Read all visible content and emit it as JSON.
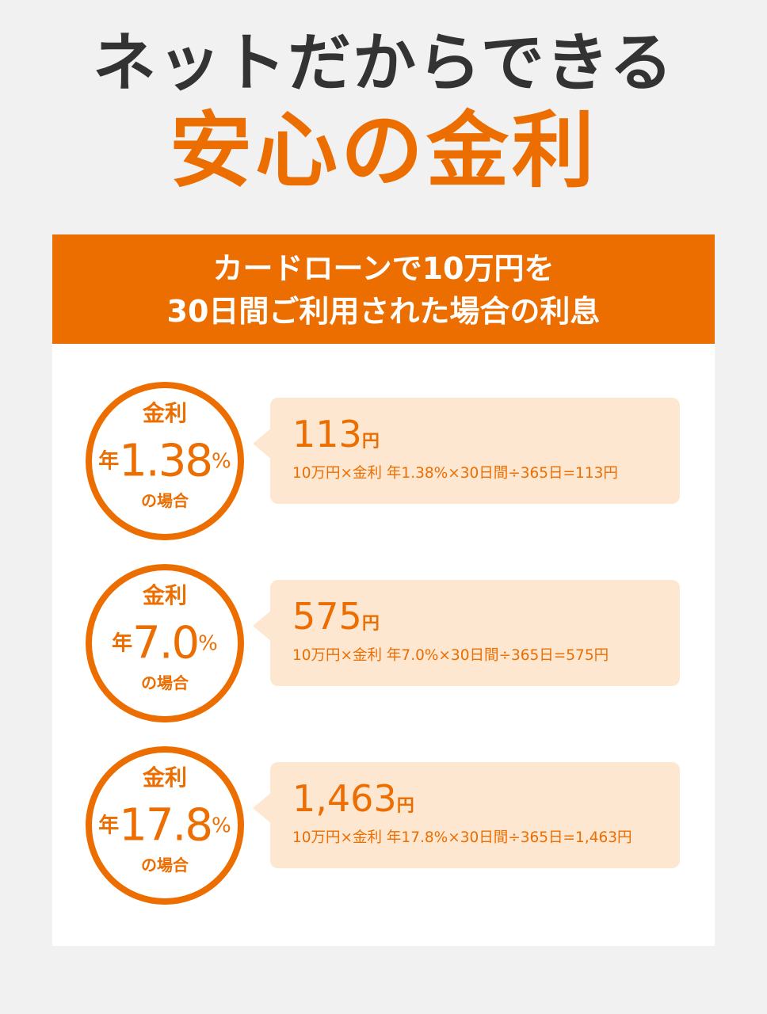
{
  "headline": {
    "top": "ネットだからできる",
    "main": "安心の金利"
  },
  "panel": {
    "header_line1": "カードローンで10万円を",
    "header_line2": "30日間ご利用された場合の利息",
    "rows": [
      {
        "label": "金利",
        "nen": "年",
        "rate": "1.38",
        "pct": "%",
        "case": "の場合",
        "amount": "113",
        "yen": "円",
        "formula": "10万円×金利 年1.38%×30日間÷365日=113円"
      },
      {
        "label": "金利",
        "nen": "年",
        "rate": "7.0",
        "pct": "%",
        "case": "の場合",
        "amount": "575",
        "yen": "円",
        "formula": "10万円×金利 年7.0%×30日間÷365日=575円"
      },
      {
        "label": "金利",
        "nen": "年",
        "rate": "17.8",
        "pct": "%",
        "case": "の場合",
        "amount": "1,463",
        "yen": "円",
        "formula": "10万円×金利 年17.8%×30日間÷365日=1,463円"
      }
    ]
  },
  "colors": {
    "accent": "#ec6d00",
    "bubble": "#fde7d1",
    "background": "#f1f1f1",
    "text": "#333333"
  }
}
